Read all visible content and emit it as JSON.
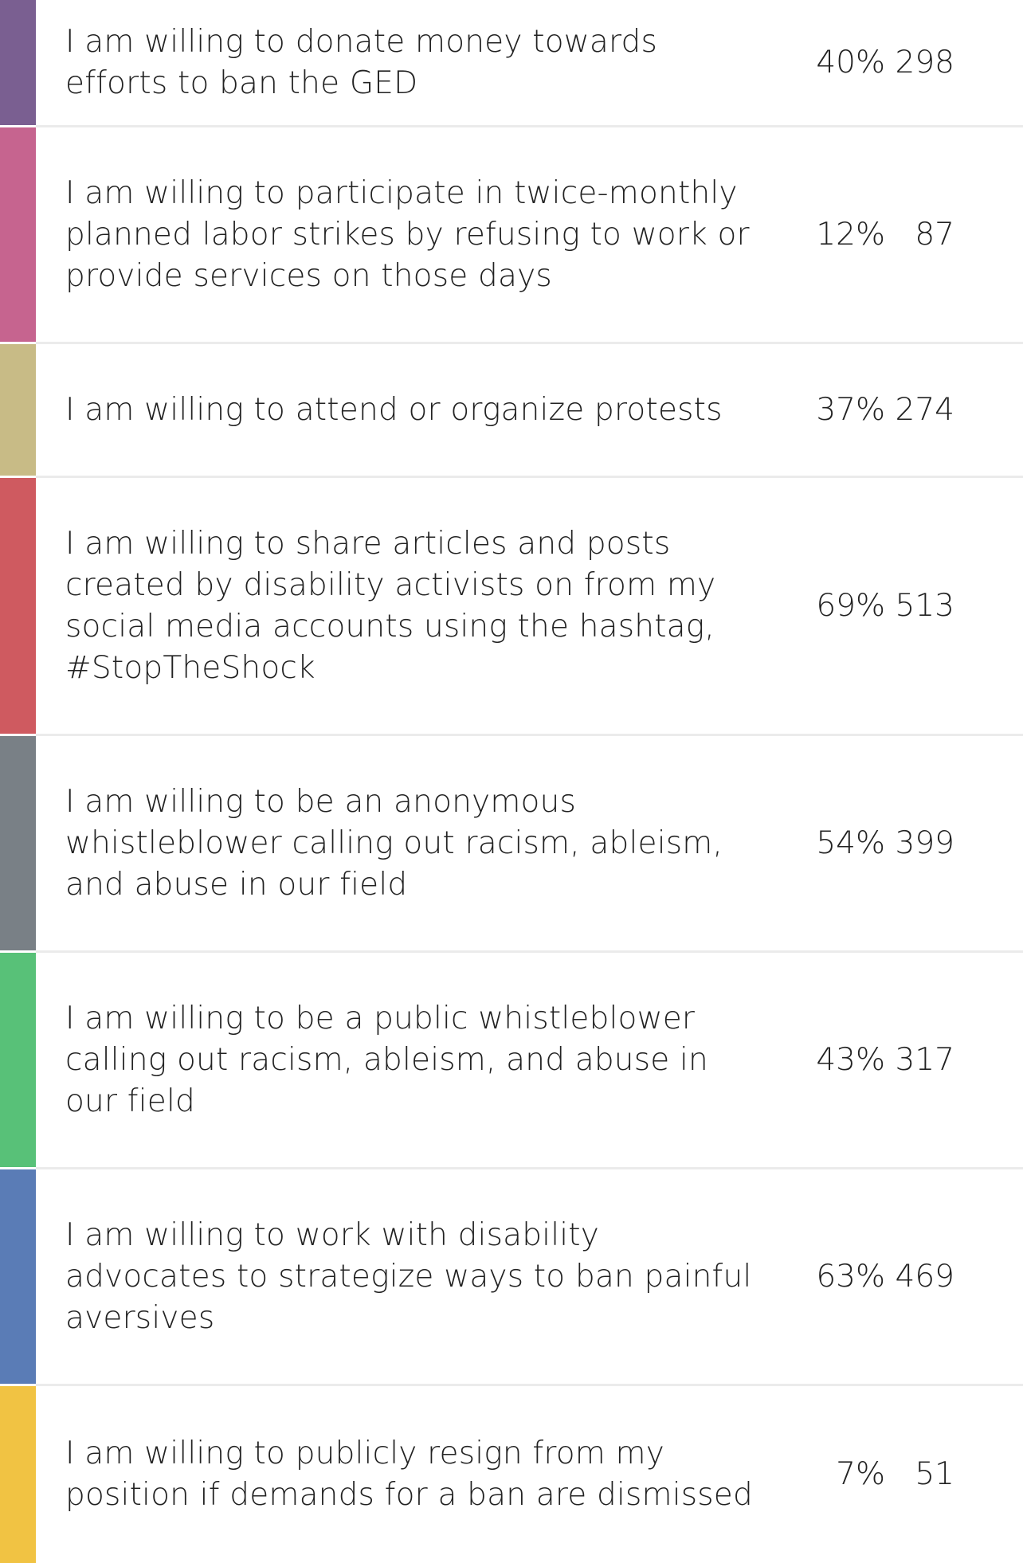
{
  "chart_data": {
    "type": "table",
    "columns": [
      "answer",
      "percent",
      "count"
    ],
    "rows": [
      {
        "label": "I am willing to donate money towards efforts to ban the GED",
        "percent": "40%",
        "count": "298",
        "color": "#7a5f91"
      },
      {
        "label": "I am willing to participate in twice-monthly planned labor strikes by refusing to work or provide services on those days",
        "percent": "12%",
        "count": "87",
        "color": "#c6648f"
      },
      {
        "label": "I am willing to attend or organize protests",
        "percent": "37%",
        "count": "274",
        "color": "#c8bb86"
      },
      {
        "label": "I am willing to share articles and posts created by disability activists on from my social media accounts using the hashtag, #StopTheShock",
        "percent": "69%",
        "count": "513",
        "color": "#cf5a60"
      },
      {
        "label": "I am willing to be an anonymous whistleblower calling out racism, ableism, and abuse in our field",
        "percent": "54%",
        "count": "399",
        "color": "#798086"
      },
      {
        "label": "I am willing to be a public whistleblower calling out racism, ableism, and abuse in our field",
        "percent": "43%",
        "count": "317",
        "color": "#58c178"
      },
      {
        "label": "I am willing to work with disability advocates to strategize ways to ban painful aversives",
        "percent": "63%",
        "count": "469",
        "color": "#5a7cb6"
      },
      {
        "label": "I am willing to publicly resign from my position if demands for a ban are dismissed",
        "percent": "7%",
        "count": "51",
        "color": "#f1c343"
      }
    ]
  }
}
